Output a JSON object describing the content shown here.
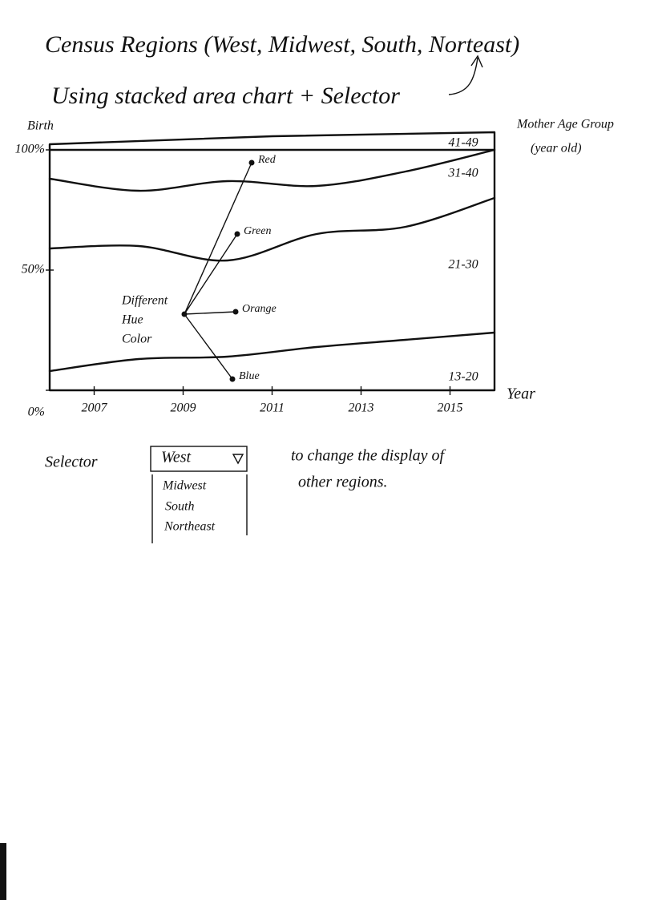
{
  "chart_data": {
    "type": "area",
    "title": "Census Regions (West, Midwest, South, Norteast)",
    "subtitle": "Using stacked area chart + Selector",
    "y_label": "Birth",
    "x_label": "Year",
    "legend_title": [
      "Mother Age Group",
      "(year old)"
    ],
    "x": [
      2006,
      2008,
      2010,
      2012,
      2014,
      2016
    ],
    "xlim": [
      2006,
      2016
    ],
    "xticks": [
      2007,
      2009,
      2011,
      2013,
      2015
    ],
    "ylim": [
      0,
      100
    ],
    "yticks": [
      {
        "value": 0,
        "label": "0%"
      },
      {
        "value": 50,
        "label": "50%"
      },
      {
        "value": 100,
        "label": "100%"
      }
    ],
    "stacked": true,
    "series": [
      {
        "name": "13-20",
        "values": [
          8,
          13,
          14,
          18,
          21,
          24
        ]
      },
      {
        "name": "21-30",
        "values": [
          51,
          47,
          40,
          47,
          47,
          56
        ]
      },
      {
        "name": "31-40",
        "values": [
          29,
          23,
          33,
          20,
          23,
          20
        ]
      },
      {
        "name": "41-49",
        "values": [
          12,
          17,
          13,
          15,
          9,
          0
        ]
      }
    ],
    "annotation": {
      "lines": [
        "Different",
        "Hue",
        "Color"
      ],
      "colors": [
        "Red",
        "Green",
        "Orange",
        "Blue"
      ]
    }
  },
  "selector": {
    "label": "Selector",
    "selected": "West",
    "options": [
      "Midwest",
      "South",
      "Northeast"
    ],
    "note": [
      "to change the display of",
      "other regions."
    ]
  }
}
